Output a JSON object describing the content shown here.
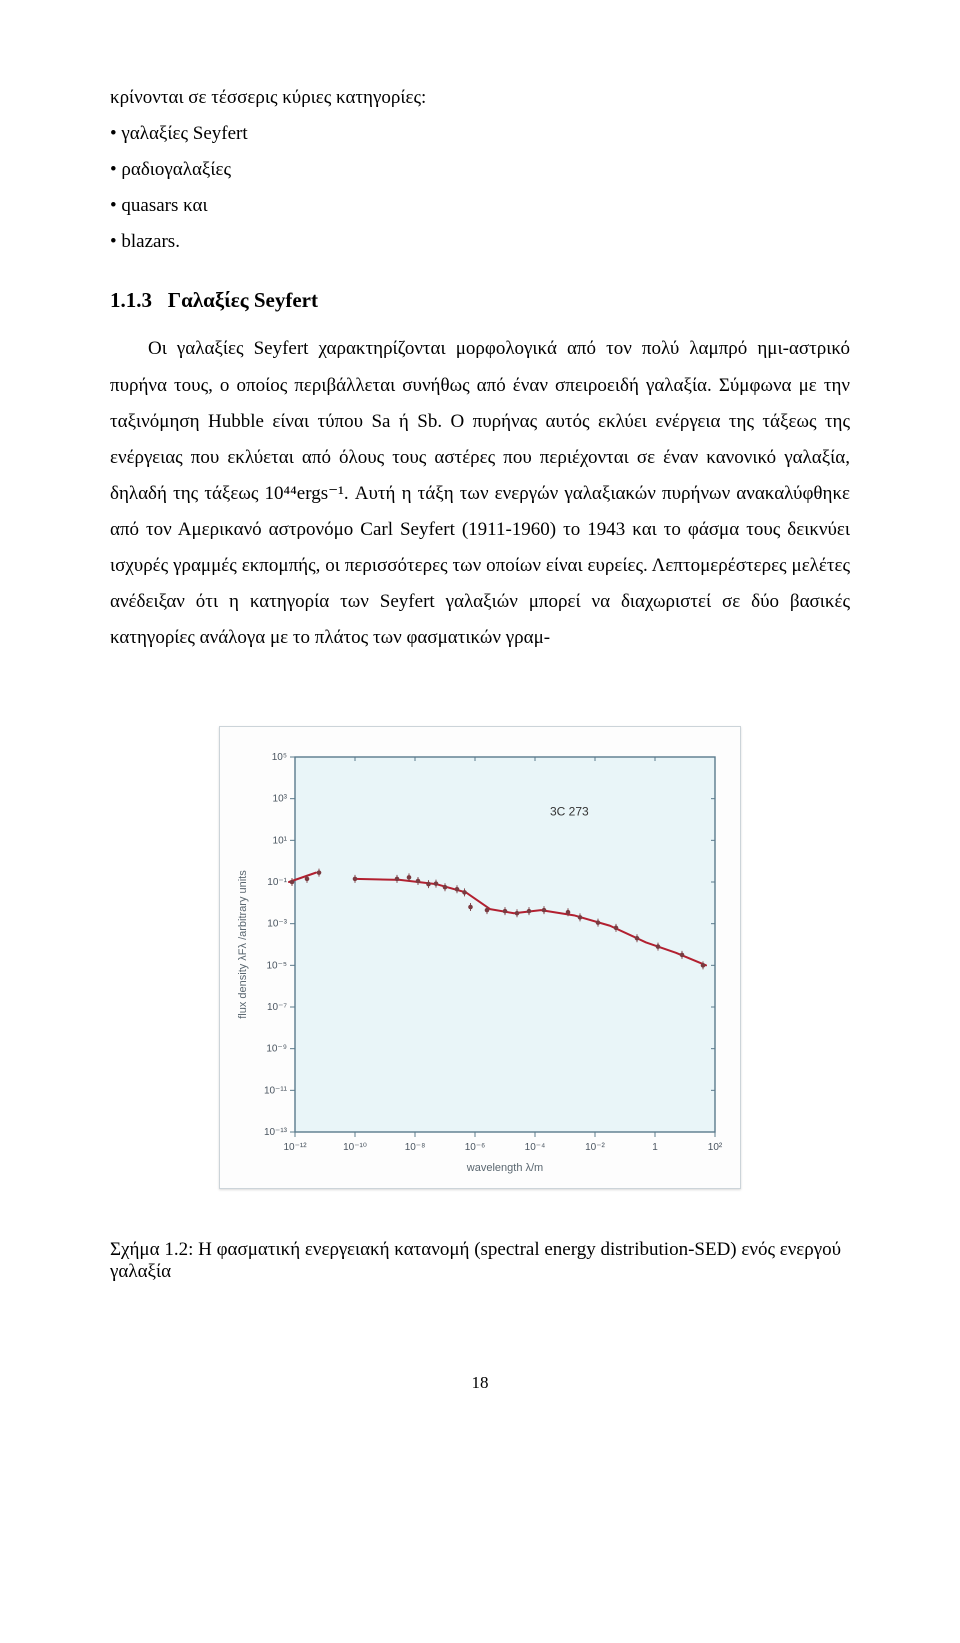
{
  "body_text": {
    "intro_line": "κρίνονται σε τέσσερις κύριες κατηγορίες:",
    "bullets": [
      "• γαλαξίες Seyfert",
      "• ραδιογαλαξίες",
      "• quasars και",
      "• blazars."
    ],
    "section_number": "1.1.3",
    "section_title": "Γαλαξίες Seyfert",
    "main_paragraph": "Οι γαλαξίες Seyfert χαρακτηρίζονται μορφολογικά από τον πολύ λαμπρό ημι-αστρικό πυρήνα τους, ο οποίος περιβάλλεται συνήθως από έναν σπειροειδή γαλαξία. Σύμφωνα με την ταξινόμηση Hubble είναι τύπου Sa ή Sb. Ο πυρήνας αυτός εκλύει ενέργεια της τάξεως της ενέργειας που εκλύεται από όλους τους αστέρες που περιέχονται σε έναν κανονικό γαλαξία, δηλαδή της τάξεως 10⁴⁴ergs⁻¹. Αυτή η τάξη των ενεργών γαλαξιακών πυρήνων ανακαλύφθηκε από τον Αμερικανό αστρονόμο Carl Seyfert (1911-1960) το 1943 και το φάσμα τους δεικνύει ισχυρές γραμμές εκπομπής, οι περισσότερες των οποίων είναι ευρείες. Λεπτομερέστερες μελέτες ανέδειξαν ότι η κατηγορία των Seyfert γαλαξιών μπορεί να διαχωριστεί σε δύο βασικές κατηγορίες ανάλογα με το πλάτος των φασματικών γραμ-"
  },
  "chart": {
    "type": "line-scatter",
    "series_label": "3C 273",
    "xlabel": "wavelength λ/m",
    "ylabel": "flux density λFλ /arbitrary units",
    "background_color": "#e9f5f8",
    "frame_border_color": "#5a7a8c",
    "grid_color": "#ffffff",
    "line_color": "#b22030",
    "marker_color": "#7a3a40",
    "label_text_color": "#5a6770",
    "axis_text_color": "#4a5560",
    "ylabel_fontsize": 11,
    "xlabel_fontsize": 11,
    "tick_fontsize": 10,
    "annotation_fontsize": 12,
    "x_ticks": [
      "10⁻¹²",
      "10⁻¹⁰",
      "10⁻⁸",
      "10⁻⁶",
      "10⁻⁴",
      "10⁻²",
      "1",
      "10²"
    ],
    "y_ticks": [
      "10⁻¹³",
      "10⁻¹¹",
      "10⁻⁹",
      "10⁻⁷",
      "10⁻⁵",
      "10⁻³",
      "10⁻¹",
      "10¹",
      "10³",
      "10⁵"
    ],
    "x_log_range": [
      -12,
      2
    ],
    "y_log_range": [
      -13,
      5
    ],
    "line_points": [
      {
        "x": -12.2,
        "y": -1.0
      },
      {
        "x": -11.3,
        "y": -0.55
      },
      {
        "x": -10.0,
        "y": -0.85
      },
      {
        "x": -8.5,
        "y": -0.9
      },
      {
        "x": -7.3,
        "y": -1.1
      },
      {
        "x": -6.3,
        "y": -1.5
      },
      {
        "x": -5.5,
        "y": -2.3
      },
      {
        "x": -4.7,
        "y": -2.5
      },
      {
        "x": -3.8,
        "y": -2.35
      },
      {
        "x": -2.7,
        "y": -2.6
      },
      {
        "x": -1.5,
        "y": -3.1
      },
      {
        "x": -0.3,
        "y": -3.9
      },
      {
        "x": 0.7,
        "y": -4.4
      },
      {
        "x": 1.7,
        "y": -5.0
      }
    ],
    "markers": [
      {
        "x": -12.1,
        "y": -1.0
      },
      {
        "x": -11.6,
        "y": -0.85
      },
      {
        "x": -11.2,
        "y": -0.55
      },
      {
        "x": -10.0,
        "y": -0.85
      },
      {
        "x": -8.6,
        "y": -0.85
      },
      {
        "x": -8.2,
        "y": -0.78
      },
      {
        "x": -7.9,
        "y": -0.95
      },
      {
        "x": -7.55,
        "y": -1.1
      },
      {
        "x": -7.3,
        "y": -1.08
      },
      {
        "x": -7.0,
        "y": -1.25
      },
      {
        "x": -6.6,
        "y": -1.35
      },
      {
        "x": -6.35,
        "y": -1.5
      },
      {
        "x": -6.15,
        "y": -2.2
      },
      {
        "x": -5.6,
        "y": -2.35
      },
      {
        "x": -5.0,
        "y": -2.4
      },
      {
        "x": -4.6,
        "y": -2.5
      },
      {
        "x": -4.2,
        "y": -2.4
      },
      {
        "x": -3.7,
        "y": -2.35
      },
      {
        "x": -2.9,
        "y": -2.45
      },
      {
        "x": -2.5,
        "y": -2.7
      },
      {
        "x": -1.9,
        "y": -2.95
      },
      {
        "x": -1.3,
        "y": -3.2
      },
      {
        "x": -0.6,
        "y": -3.7
      },
      {
        "x": 0.1,
        "y": -4.1
      },
      {
        "x": 0.9,
        "y": -4.5
      },
      {
        "x": 1.6,
        "y": -5.0
      }
    ]
  },
  "figure_caption": {
    "label": "Σχήμα 1.2:",
    "text": "Η φασματική ενεργειακή κατανομή (spectral energy distribution-SED) ενός ενεργού γαλαξία"
  },
  "page_number": "18"
}
